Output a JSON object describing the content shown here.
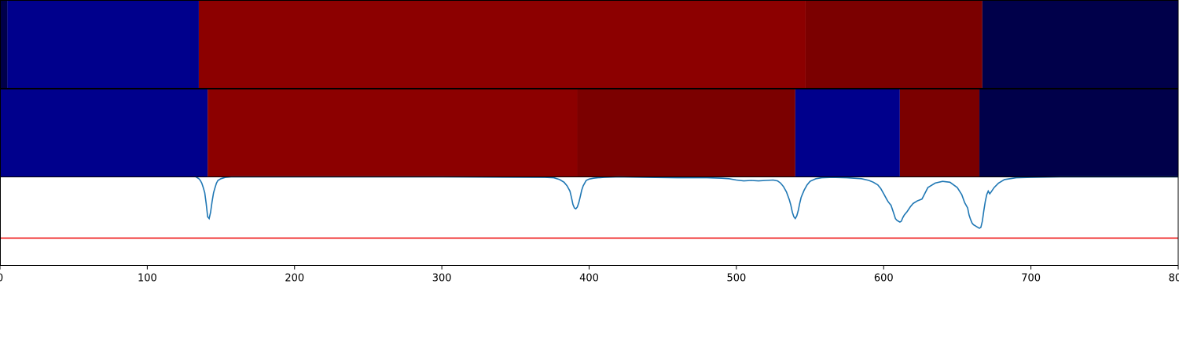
{
  "chart_data": [
    {
      "type": "heatmap",
      "title": "",
      "xlim": [
        0,
        800
      ],
      "segments": [
        {
          "start": 0,
          "end": 5,
          "color": "#00004a"
        },
        {
          "start": 5,
          "end": 135,
          "color": "#00008c"
        },
        {
          "start": 135,
          "end": 547,
          "color": "#8c0000"
        },
        {
          "start": 547,
          "end": 667,
          "color": "#7b0000"
        },
        {
          "start": 667,
          "end": 800,
          "color": "#00004a"
        }
      ]
    },
    {
      "type": "heatmap",
      "title": "",
      "xlim": [
        0,
        800
      ],
      "segments": [
        {
          "start": 0,
          "end": 141,
          "color": "#00008c"
        },
        {
          "start": 141,
          "end": 392,
          "color": "#8c0000"
        },
        {
          "start": 392,
          "end": 540,
          "color": "#7b0000"
        },
        {
          "start": 540,
          "end": 611,
          "color": "#00008c"
        },
        {
          "start": 611,
          "end": 665,
          "color": "#7b0000"
        },
        {
          "start": 665,
          "end": 800,
          "color": "#00004a"
        }
      ]
    },
    {
      "type": "line",
      "title": "",
      "xlabel": "",
      "ylabel": "",
      "xlim": [
        0,
        800
      ],
      "ylim": [
        0,
        1
      ],
      "xticks": [
        0,
        100,
        200,
        300,
        400,
        500,
        600,
        700,
        800
      ],
      "xtick_labels": [
        "0",
        "100",
        "200",
        "300",
        "400",
        "500",
        "600",
        "700",
        "800"
      ],
      "threshold": {
        "y": 0.31,
        "color": "#ee0000"
      },
      "series": [
        {
          "color": "#1f77b4",
          "x": [
            133,
            134,
            135,
            136,
            137,
            138,
            139,
            140,
            141,
            142,
            143,
            144,
            145,
            146,
            147,
            148,
            150,
            153,
            157,
            160,
            200,
            300,
            370,
            376,
            380,
            383,
            385,
            387,
            388,
            389,
            390,
            391,
            392,
            393,
            394,
            395,
            396,
            398,
            400,
            403,
            406,
            410,
            420,
            440,
            460,
            480,
            490,
            495,
            500,
            505,
            510,
            515,
            520,
            525,
            528,
            530,
            532,
            534,
            536,
            537,
            538,
            539,
            540,
            541,
            542,
            543,
            544,
            546,
            548,
            550,
            554,
            558,
            565,
            575,
            585,
            590,
            593,
            596,
            598,
            600,
            602,
            603,
            604,
            605,
            606,
            607,
            608,
            609,
            610,
            611,
            612,
            613,
            614,
            616,
            618,
            620,
            623,
            626,
            630,
            635,
            640,
            645,
            650,
            653,
            655,
            657,
            658,
            659,
            660,
            661,
            662,
            663,
            664,
            665,
            666,
            667,
            668,
            669,
            670,
            671,
            672,
            673,
            675,
            678,
            682,
            690,
            700,
            720,
            760,
            800
          ],
          "values": [
            1.0,
            0.99,
            0.98,
            0.96,
            0.93,
            0.88,
            0.82,
            0.7,
            0.55,
            0.53,
            0.6,
            0.72,
            0.82,
            0.88,
            0.93,
            0.96,
            0.98,
            0.995,
            1.0,
            1.0,
            1.0,
            1.0,
            0.995,
            0.99,
            0.97,
            0.94,
            0.9,
            0.84,
            0.77,
            0.69,
            0.65,
            0.64,
            0.66,
            0.71,
            0.78,
            0.85,
            0.9,
            0.96,
            0.975,
            0.985,
            0.99,
            0.995,
            1.0,
            0.995,
            0.99,
            0.99,
            0.985,
            0.98,
            0.965,
            0.955,
            0.96,
            0.955,
            0.96,
            0.965,
            0.955,
            0.93,
            0.89,
            0.83,
            0.74,
            0.68,
            0.6,
            0.55,
            0.53,
            0.56,
            0.62,
            0.7,
            0.77,
            0.85,
            0.91,
            0.95,
            0.98,
            0.99,
            0.995,
            0.99,
            0.98,
            0.96,
            0.94,
            0.91,
            0.87,
            0.81,
            0.75,
            0.72,
            0.7,
            0.68,
            0.63,
            0.58,
            0.53,
            0.51,
            0.5,
            0.49,
            0.5,
            0.54,
            0.57,
            0.61,
            0.66,
            0.7,
            0.73,
            0.75,
            0.88,
            0.93,
            0.95,
            0.94,
            0.88,
            0.8,
            0.71,
            0.65,
            0.57,
            0.52,
            0.48,
            0.46,
            0.45,
            0.44,
            0.43,
            0.42,
            0.43,
            0.5,
            0.62,
            0.72,
            0.8,
            0.84,
            0.81,
            0.83,
            0.88,
            0.93,
            0.97,
            0.99,
            0.995,
            1.0,
            1.0,
            1.0
          ]
        }
      ]
    }
  ]
}
